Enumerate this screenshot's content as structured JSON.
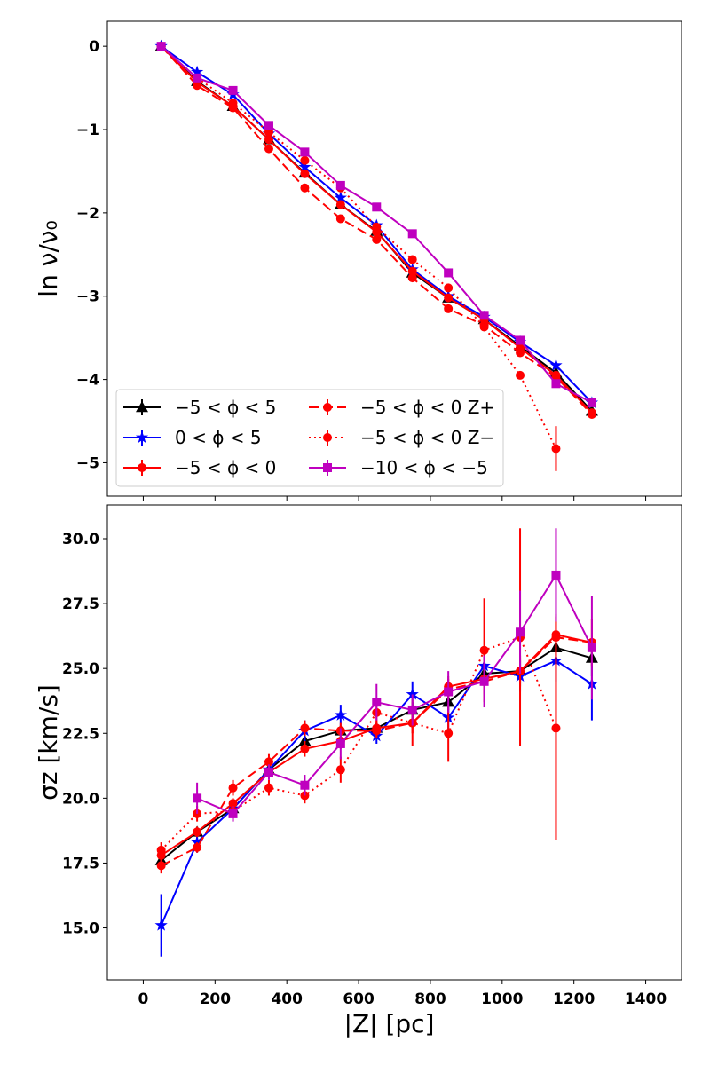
{
  "chart_data": [
    {
      "type": "line",
      "panel": "top",
      "ylabel": "ln ν/ν₀",
      "xlabel": "",
      "xlim": [
        -100,
        1500
      ],
      "ylim": [
        -5.4,
        0.3
      ],
      "xticks": [
        0,
        200,
        400,
        600,
        800,
        1000,
        1200,
        1400
      ],
      "yticks": [
        0,
        -1,
        -2,
        -3,
        -4,
        -5
      ],
      "ytick_labels": [
        "0",
        "−1",
        "−2",
        "−3",
        "−4",
        "−5"
      ],
      "legend_position": "lower-left",
      "x": [
        50,
        150,
        250,
        350,
        450,
        550,
        650,
        750,
        850,
        950,
        1050,
        1150,
        1250
      ],
      "series": [
        {
          "name": "−5 < ϕ < 5",
          "color": "#000000",
          "marker": "triangle",
          "dash": "solid",
          "values": [
            0.0,
            -0.42,
            -0.72,
            -1.12,
            -1.52,
            -1.9,
            -2.22,
            -2.72,
            -3.02,
            -3.28,
            -3.6,
            -3.92,
            -4.38
          ],
          "errors": [
            0,
            0,
            0,
            0,
            0,
            0,
            0,
            0,
            0,
            0,
            0,
            0,
            0
          ]
        },
        {
          "name": "0 < ϕ < 5",
          "color": "#0000ff",
          "marker": "star",
          "dash": "solid",
          "values": [
            0.0,
            -0.31,
            -0.58,
            -1.05,
            -1.45,
            -1.82,
            -2.15,
            -2.68,
            -3.0,
            -3.25,
            -3.55,
            -3.83,
            -4.28
          ],
          "errors": [
            0,
            0,
            0,
            0,
            0,
            0,
            0,
            0,
            0,
            0,
            0,
            0,
            0
          ]
        },
        {
          "name": "−5 < ϕ < 0",
          "color": "#ff0000",
          "marker": "circle",
          "dash": "solid",
          "values": [
            0.0,
            -0.43,
            -0.72,
            -1.12,
            -1.53,
            -1.9,
            -2.23,
            -2.7,
            -3.02,
            -3.28,
            -3.62,
            -3.95,
            -4.4
          ],
          "errors": [
            0,
            0,
            0,
            0,
            0,
            0,
            0,
            0,
            0,
            0,
            0,
            0,
            0
          ]
        },
        {
          "name": "−5 < ϕ < 0 Z+",
          "color": "#ff0000",
          "marker": "circle",
          "dash": "dashed",
          "values": [
            0.0,
            -0.47,
            -0.74,
            -1.23,
            -1.7,
            -2.07,
            -2.32,
            -2.78,
            -3.15,
            -3.35,
            -3.68,
            -3.97,
            -4.42
          ],
          "errors": [
            0,
            0,
            0,
            0,
            0,
            0,
            0,
            0,
            0,
            0,
            0,
            0,
            0
          ]
        },
        {
          "name": "−5 < ϕ < 0 Z−",
          "color": "#ff0000",
          "marker": "circle",
          "dash": "dotted",
          "values": [
            0.0,
            -0.38,
            -0.68,
            -1.03,
            -1.37,
            -1.7,
            -2.17,
            -2.56,
            -2.9,
            -3.37,
            -3.95,
            -4.83,
            null
          ],
          "errors": [
            0,
            0,
            0,
            0,
            0,
            0,
            0,
            0,
            0,
            0,
            0,
            0.27,
            0
          ]
        },
        {
          "name": "−10 < ϕ < −5",
          "color": "#bf00bf",
          "marker": "square",
          "dash": "solid",
          "values": [
            0.0,
            -0.38,
            -0.53,
            -0.95,
            -1.27,
            -1.67,
            -1.93,
            -2.25,
            -2.72,
            -3.23,
            -3.53,
            -4.05,
            -4.28
          ],
          "errors": [
            0,
            0,
            0,
            0,
            0,
            0,
            0,
            0,
            0,
            0,
            0,
            0,
            0
          ]
        }
      ]
    },
    {
      "type": "line",
      "panel": "bottom",
      "ylabel": "σz [km/s]",
      "xlabel": "|Z| [pc]",
      "xlim": [
        -100,
        1500
      ],
      "ylim": [
        13.0,
        31.3
      ],
      "xticks": [
        0,
        200,
        400,
        600,
        800,
        1000,
        1200,
        1400
      ],
      "yticks": [
        15.0,
        17.5,
        20.0,
        22.5,
        25.0,
        27.5,
        30.0
      ],
      "ytick_labels": [
        "15.0",
        "17.5",
        "20.0",
        "22.5",
        "25.0",
        "27.5",
        "30.0"
      ],
      "x": [
        50,
        150,
        250,
        350,
        450,
        550,
        650,
        750,
        850,
        950,
        1050,
        1150,
        1250
      ],
      "series": [
        {
          "name": "−5 < ϕ < 5",
          "color": "#000000",
          "marker": "triangle",
          "dash": "solid",
          "values": [
            17.6,
            18.7,
            19.6,
            21.1,
            22.2,
            22.6,
            22.7,
            23.4,
            23.7,
            24.8,
            24.9,
            25.8,
            25.4
          ],
          "errors": [
            0.2,
            0.2,
            0.2,
            0.2,
            0.2,
            0.2,
            0.2,
            0.3,
            0.3,
            0.4,
            0.5,
            0.6,
            0.7
          ]
        },
        {
          "name": "0 < ϕ < 5",
          "color": "#0000ff",
          "marker": "star",
          "dash": "solid",
          "values": [
            15.1,
            18.3,
            19.6,
            21.1,
            22.6,
            23.2,
            22.4,
            24.0,
            23.1,
            25.1,
            24.7,
            25.3,
            24.4
          ],
          "errors": [
            1.2,
            0.4,
            0.3,
            0.3,
            0.4,
            0.4,
            0.3,
            0.5,
            0.5,
            0.6,
            0.6,
            0.8,
            1.4
          ]
        },
        {
          "name": "−5 < ϕ < 0",
          "color": "#ff0000",
          "marker": "circle",
          "dash": "solid",
          "values": [
            17.8,
            18.7,
            19.8,
            21.0,
            21.9,
            22.2,
            22.7,
            22.9,
            24.3,
            24.6,
            24.9,
            26.3,
            26.0
          ],
          "errors": [
            0.3,
            0.2,
            0.2,
            0.2,
            0.3,
            0.3,
            0.3,
            0.4,
            0.4,
            0.5,
            0.6,
            0.8,
            0.9
          ]
        },
        {
          "name": "−5 < ϕ < 0 Z+",
          "color": "#ff0000",
          "marker": "circle",
          "dash": "dashed",
          "values": [
            17.4,
            18.1,
            20.4,
            21.4,
            22.7,
            22.6,
            22.6,
            22.9,
            24.2,
            24.5,
            24.9,
            26.2,
            26.0
          ],
          "errors": [
            0.3,
            0.2,
            0.3,
            0.3,
            0.3,
            0.3,
            0.3,
            0.4,
            0.4,
            0.5,
            0.6,
            0.8,
            0.9
          ]
        },
        {
          "name": "−5 < ϕ < 0 Z−",
          "color": "#ff0000",
          "marker": "circle",
          "dash": "dotted",
          "values": [
            18.0,
            19.4,
            19.5,
            20.4,
            20.1,
            21.1,
            23.3,
            22.9,
            22.5,
            25.7,
            26.2,
            22.7,
            null
          ],
          "errors": [
            0.3,
            0.3,
            0.3,
            0.3,
            0.3,
            0.5,
            0.5,
            0.9,
            1.1,
            2.0,
            4.2,
            4.3,
            0
          ]
        },
        {
          "name": "−10 < ϕ < −5",
          "color": "#bf00bf",
          "marker": "square",
          "dash": "solid",
          "values": [
            null,
            20.0,
            19.4,
            21.0,
            20.5,
            22.1,
            23.7,
            23.4,
            24.1,
            24.5,
            26.4,
            28.6,
            25.8
          ],
          "errors": [
            0,
            0.6,
            0.3,
            0.3,
            0.4,
            0.6,
            0.7,
            0.6,
            0.8,
            1.0,
            1.6,
            1.8,
            2.0
          ]
        }
      ]
    }
  ]
}
